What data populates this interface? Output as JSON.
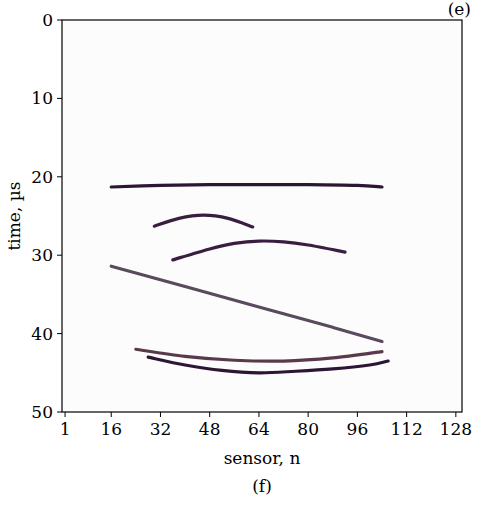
{
  "chart_data": {
    "type": "line",
    "xlabel": "sensor, n",
    "ylabel": "time, µs",
    "annotations": [
      "(e)",
      "(f)"
    ],
    "xlim": [
      0,
      130
    ],
    "ylim": [
      50,
      0
    ],
    "xticks": [
      1,
      16,
      32,
      48,
      64,
      80,
      96,
      112,
      128
    ],
    "yticks": [
      0,
      10,
      20,
      30,
      40,
      50
    ],
    "grid": false,
    "series": [
      {
        "color": "#2b1633",
        "x": [
          16,
          32,
          48,
          64,
          80,
          96,
          104
        ],
        "values": [
          21.3,
          21.1,
          21.0,
          21.0,
          21.0,
          21.1,
          21.3
        ]
      },
      {
        "color": "#3a1e40",
        "x": [
          30,
          38,
          46,
          54,
          62
        ],
        "values": [
          26.3,
          25.3,
          24.9,
          25.3,
          26.4
        ]
      },
      {
        "color": "#3a1e40",
        "x": [
          36,
          48,
          56,
          64,
          72,
          80,
          92
        ],
        "values": [
          30.6,
          29.2,
          28.5,
          28.2,
          28.3,
          28.7,
          29.6
        ]
      },
      {
        "color": "#5a4a5e",
        "x": [
          16,
          40,
          64,
          88,
          104
        ],
        "values": [
          31.4,
          34.0,
          36.6,
          39.2,
          41.0
        ]
      },
      {
        "color": "#2b1633",
        "x": [
          28,
          40,
          52,
          64,
          76,
          88,
          100,
          106
        ],
        "values": [
          43.0,
          44.0,
          44.7,
          45.0,
          44.8,
          44.5,
          44.0,
          43.5
        ]
      },
      {
        "color": "#5a3a4a",
        "x": [
          24,
          40,
          56,
          72,
          88,
          104
        ],
        "values": [
          42.0,
          42.9,
          43.4,
          43.5,
          43.1,
          42.3
        ]
      }
    ]
  }
}
